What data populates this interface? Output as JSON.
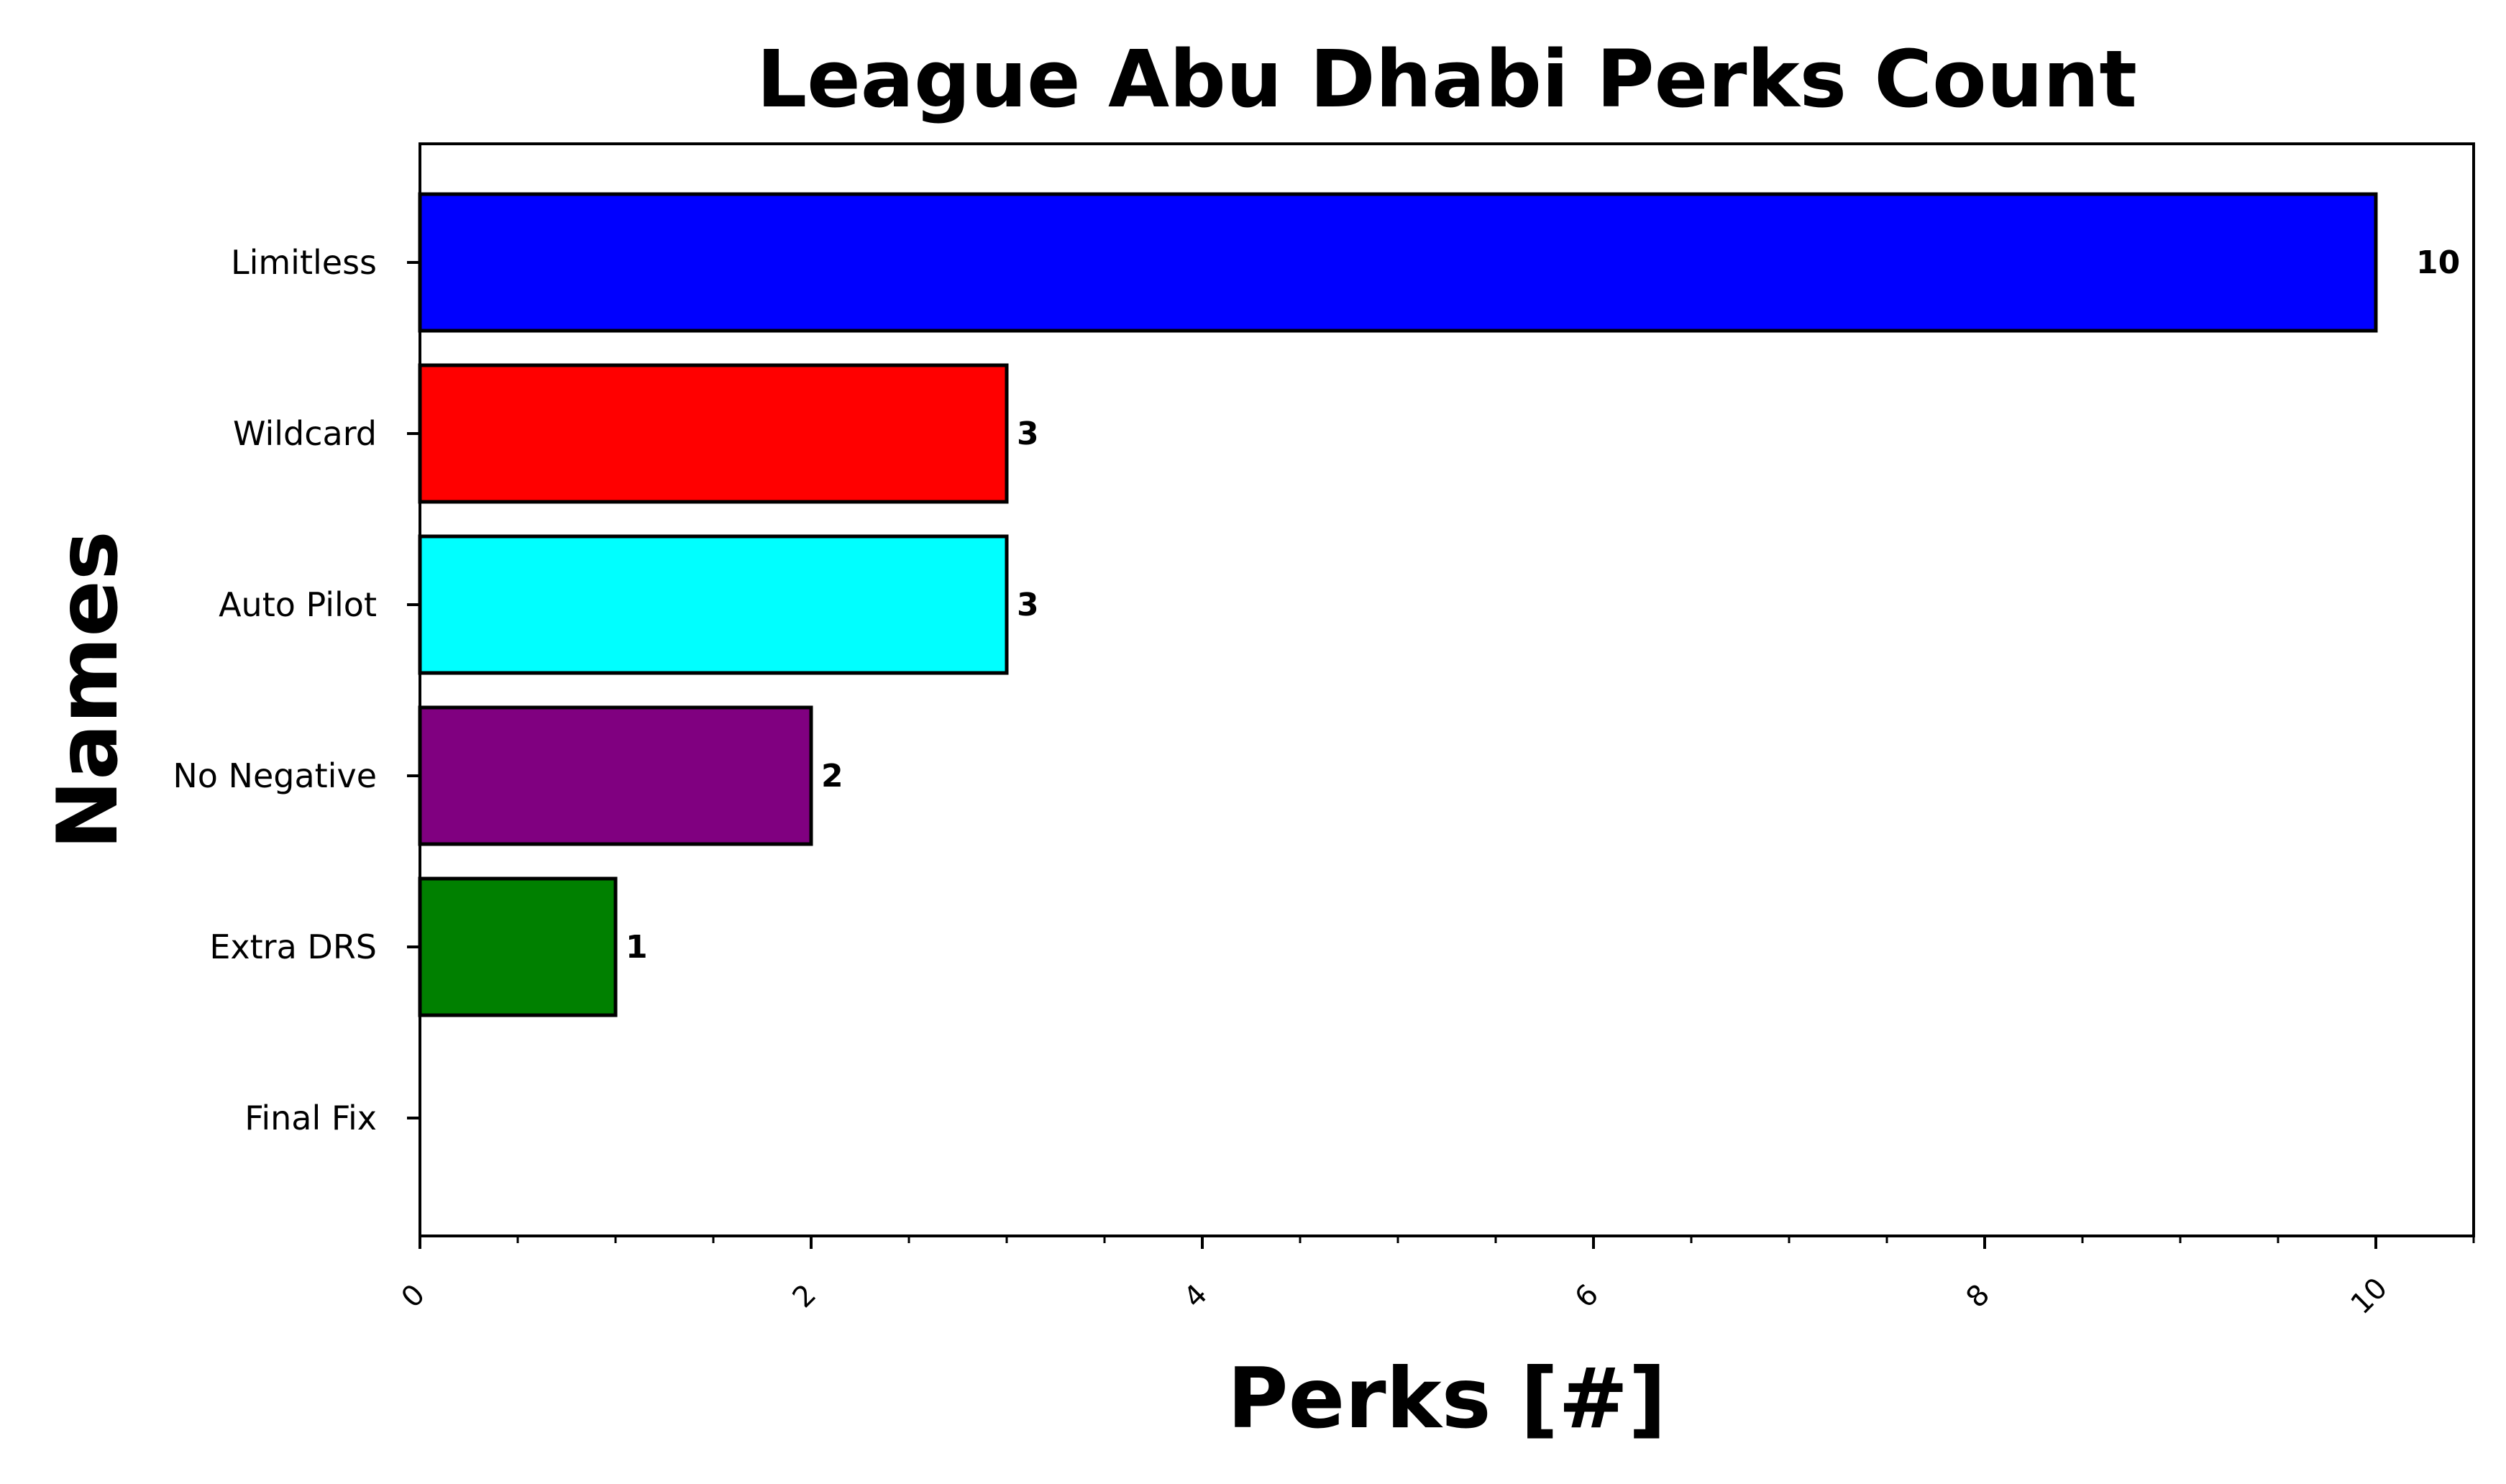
{
  "chart_data": {
    "type": "bar",
    "orientation": "horizontal",
    "title": "League Abu Dhabi Perks Count",
    "xlabel": "Perks [#]",
    "ylabel": "Names",
    "categories": [
      "Limitless",
      "Wildcard",
      "Auto Pilot",
      "No Negative",
      "Extra DRS",
      "Final Fix"
    ],
    "values": [
      10,
      3,
      3,
      2,
      1,
      0
    ],
    "data_labels": [
      "10",
      "3",
      "3",
      "2",
      "1",
      ""
    ],
    "colors": [
      "#0000ff",
      "#ff0000",
      "#00ffff",
      "#800080",
      "#008000",
      "#ffffff"
    ],
    "xlim": [
      0,
      10.5
    ],
    "xticks": [
      0,
      2,
      4,
      6,
      8,
      10
    ],
    "xtick_labels": [
      "0",
      "2",
      "4",
      "6",
      "8",
      "10"
    ],
    "grid": false,
    "legend": "none"
  }
}
